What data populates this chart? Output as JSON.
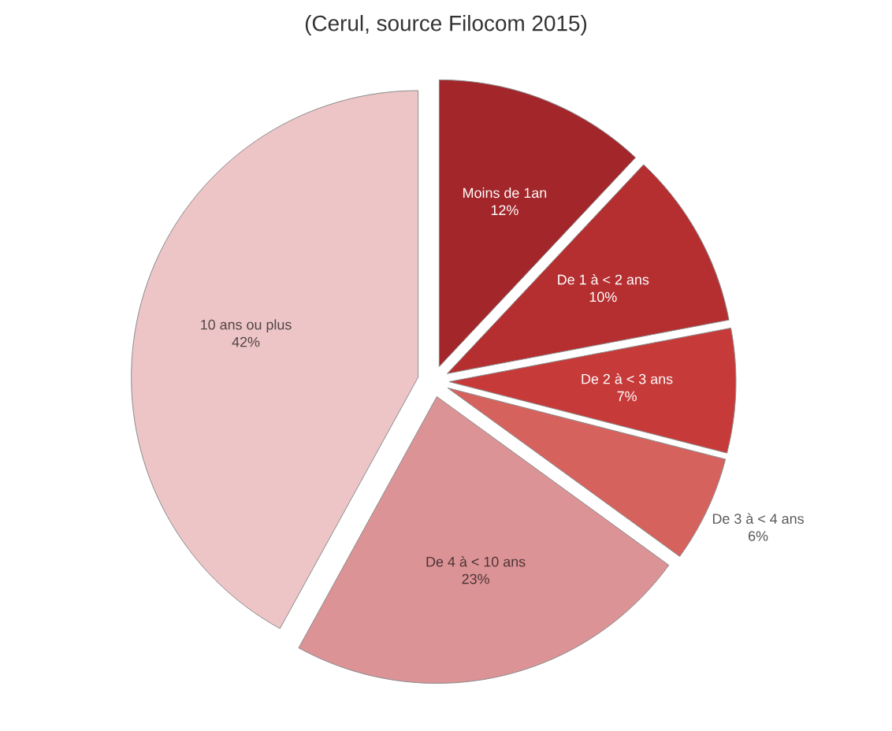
{
  "chart_data": {
    "type": "pie",
    "title": "(Cerul, source Filocom 2015)",
    "categories": [
      "Moins de 1an",
      "De 1 à < 2 ans",
      "De 2 à < 3 ans",
      "De 3 à < 4 ans",
      "De 4 à < 10 ans",
      "10 ans ou plus"
    ],
    "values": [
      12,
      10,
      7,
      6,
      23,
      42
    ],
    "value_labels": [
      "12%",
      "10%",
      "7%",
      "6%",
      "23%",
      "42%"
    ],
    "colors": [
      "#a3262a",
      "#b52f30",
      "#c63b39",
      "#d6625e",
      "#dc9396",
      "#edc5c7"
    ]
  }
}
